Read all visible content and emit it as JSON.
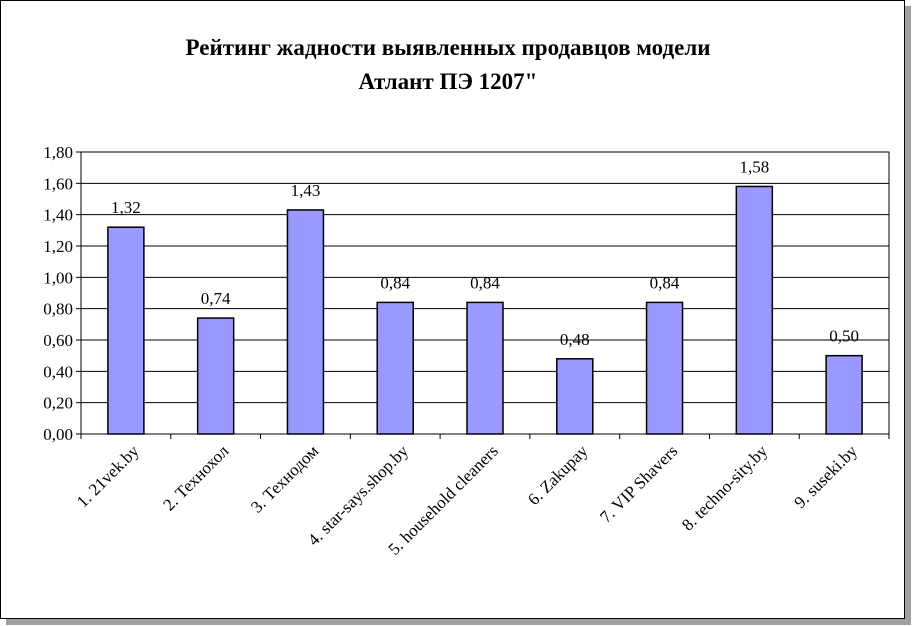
{
  "chart_data": {
    "type": "bar",
    "title_lines": [
      "Рейтинг жадности выявленных продавцов модели",
      "Атлант ПЭ 1207\""
    ],
    "categories": [
      "1. 21vek.by",
      "2. Технохол",
      "3. Технодом",
      "4. star-says.shop.by",
      "5. household cleaners",
      "6. Zakupay",
      "7. VIP Shavers",
      "8. techno-sity.by",
      "9. suseki.by"
    ],
    "values": [
      1.32,
      0.74,
      1.43,
      0.84,
      0.84,
      0.48,
      0.84,
      1.58,
      0.5
    ],
    "value_labels": [
      "1,32",
      "0,74",
      "1,43",
      "0,84",
      "0,84",
      "0,48",
      "0,84",
      "1,58",
      "0,50"
    ],
    "y_ticks": [
      "0,00",
      "0,20",
      "0,40",
      "0,60",
      "0,80",
      "1,00",
      "1,20",
      "1,40",
      "1,60",
      "1,80"
    ],
    "ylim": [
      0,
      1.8
    ],
    "xlabel": "",
    "ylabel": "",
    "grid": true,
    "legend": "none",
    "bar_color": "#9999ff",
    "bar_border_color": "#000000"
  }
}
